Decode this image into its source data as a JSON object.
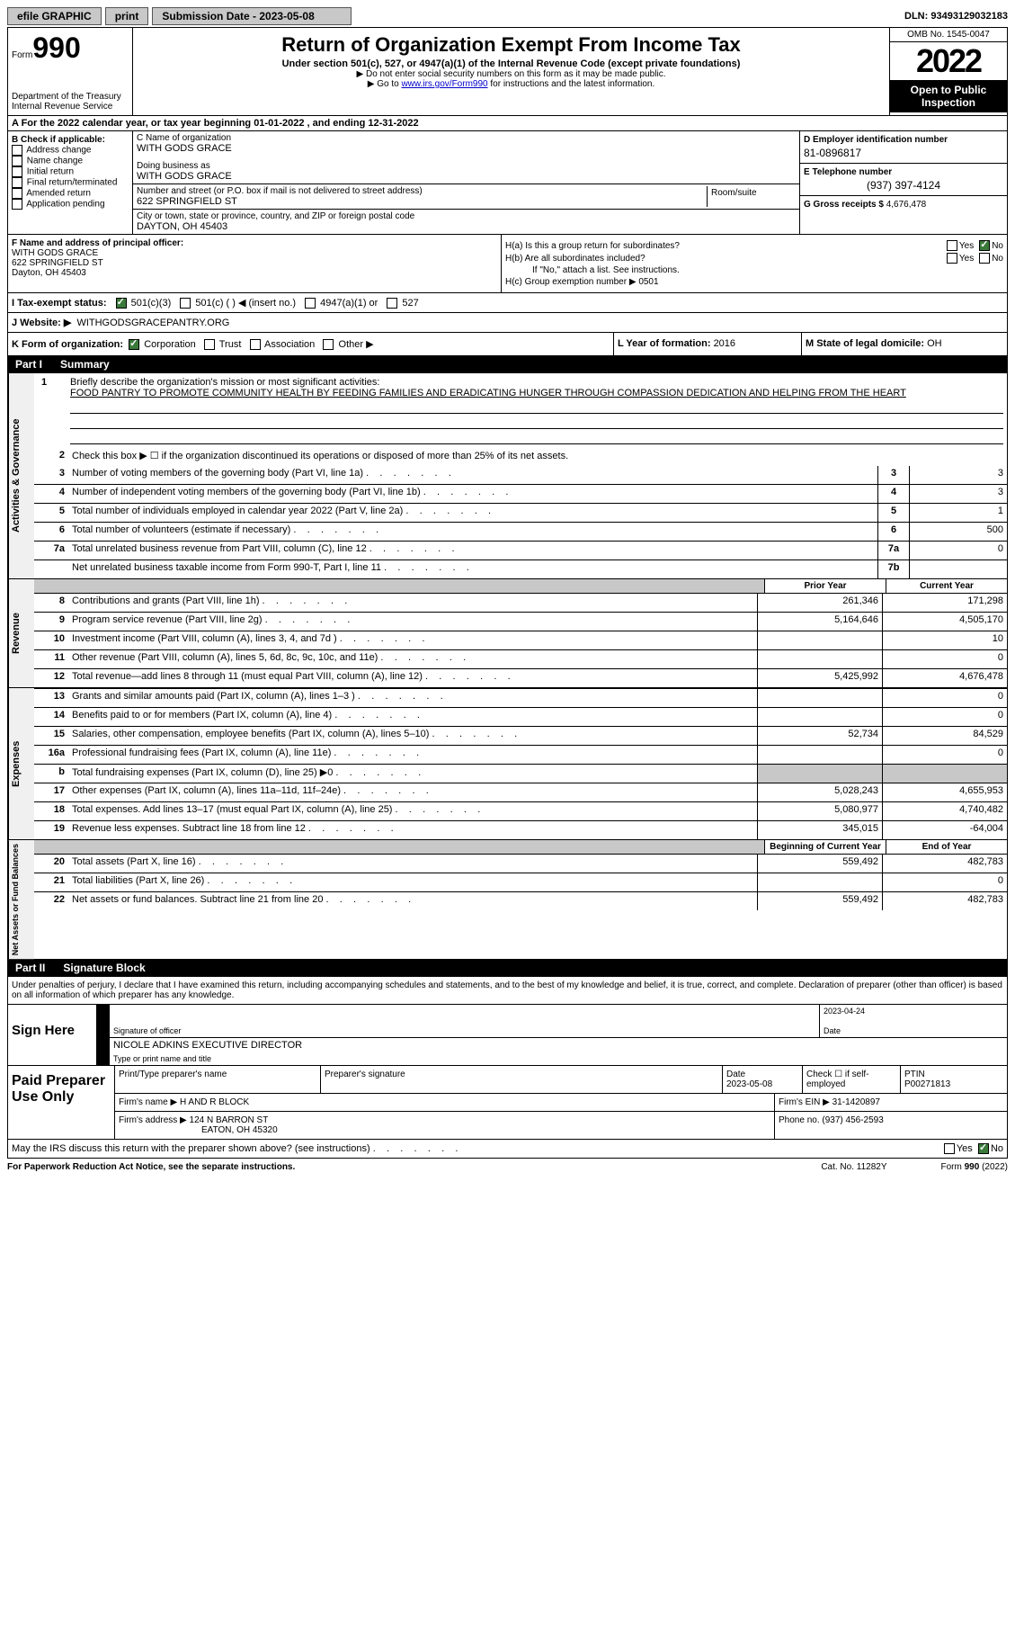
{
  "topbar": {
    "efile": "efile GRAPHIC",
    "print": "print",
    "sub_label": "Submission Date - 2023-05-08",
    "dln": "DLN: 93493129032183"
  },
  "header": {
    "form_word": "Form",
    "form_num": "990",
    "dept": "Department of the Treasury",
    "irs": "Internal Revenue Service",
    "title": "Return of Organization Exempt From Income Tax",
    "sub": "Under section 501(c), 527, or 4947(a)(1) of the Internal Revenue Code (except private foundations)",
    "note1": "▶ Do not enter social security numbers on this form as it may be made public.",
    "note2_pre": "▶ Go to ",
    "note2_link": "www.irs.gov/Form990",
    "note2_post": " for instructions and the latest information.",
    "omb": "OMB No. 1545-0047",
    "year": "2022",
    "open": "Open to Public Inspection"
  },
  "row_a": "A For the 2022 calendar year, or tax year beginning 01-01-2022    , and ending 12-31-2022",
  "box_b": {
    "label": "B Check if applicable:",
    "opts": [
      "Address change",
      "Name change",
      "Initial return",
      "Final return/terminated",
      "Amended return",
      "Application pending"
    ]
  },
  "box_c": {
    "name_label": "C Name of organization",
    "name": "WITH GODS GRACE",
    "dba_label": "Doing business as",
    "dba": "WITH GODS GRACE",
    "street_label": "Number and street (or P.O. box if mail is not delivered to street address)",
    "street": "622 SPRINGFIELD ST",
    "room_label": "Room/suite",
    "city_label": "City or town, state or province, country, and ZIP or foreign postal code",
    "city": "DAYTON, OH  45403"
  },
  "box_d": {
    "label": "D Employer identification number",
    "val": "81-0896817"
  },
  "box_e": {
    "label": "E Telephone number",
    "val": "(937) 397-4124"
  },
  "box_g": {
    "label": "G Gross receipts $ ",
    "val": "4,676,478"
  },
  "box_f": {
    "label": "F Name and address of principal officer:",
    "l1": "WITH GODS GRACE",
    "l2": "622 SPRINGFIELD ST",
    "l3": "Dayton, OH  45403"
  },
  "box_h": {
    "a": "H(a)  Is this a group return for subordinates?",
    "b": "H(b)  Are all subordinates included?",
    "b_note": "If \"No,\" attach a list. See instructions.",
    "c": "H(c)  Group exemption number ▶",
    "c_val": "0501",
    "yes": "Yes",
    "no": "No"
  },
  "row_i": {
    "label": "I  Tax-exempt status:",
    "o1": "501(c)(3)",
    "o2": "501(c) (   ) ◀ (insert no.)",
    "o3": "4947(a)(1) or",
    "o4": "527"
  },
  "row_j": {
    "label": "J  Website: ▶",
    "val": "WITHGODSGRACEPANTRY.ORG"
  },
  "row_k": {
    "label": "K Form of organization:",
    "o1": "Corporation",
    "o2": "Trust",
    "o3": "Association",
    "o4": "Other ▶"
  },
  "row_l": {
    "label": "L Year of formation: ",
    "val": "2016"
  },
  "row_m": {
    "label": "M State of legal domicile: ",
    "val": "OH"
  },
  "part1": {
    "label": "Part I",
    "title": "Summary"
  },
  "summary_sections": [
    {
      "vert": "Activities & Governance"
    },
    {
      "vert": "Revenue"
    },
    {
      "vert": "Expenses"
    },
    {
      "vert": "Net Assets or Fund Balances"
    }
  ],
  "line1": {
    "num": "1",
    "label": "Briefly describe the organization's mission or most significant activities:",
    "text": "FOOD PANTRY TO PROMOTE COMMUNITY HEALTH BY FEEDING FAMILIES AND ERADICATING HUNGER THROUGH COMPASSION DEDICATION AND HELPING FROM THE HEART"
  },
  "line2": {
    "num": "2",
    "text": "Check this box ▶ ☐  if the organization discontinued its operations or disposed of more than 25% of its net assets."
  },
  "gov_lines": [
    {
      "n": "3",
      "t": "Number of voting members of the governing body (Part VI, line 1a)",
      "b": "3",
      "v": "3"
    },
    {
      "n": "4",
      "t": "Number of independent voting members of the governing body (Part VI, line 1b)",
      "b": "4",
      "v": "3"
    },
    {
      "n": "5",
      "t": "Total number of individuals employed in calendar year 2022 (Part V, line 2a)",
      "b": "5",
      "v": "1"
    },
    {
      "n": "6",
      "t": "Total number of volunteers (estimate if necessary)",
      "b": "6",
      "v": "500"
    },
    {
      "n": "7a",
      "t": "Total unrelated business revenue from Part VIII, column (C), line 12",
      "b": "7a",
      "v": "0"
    },
    {
      "n": " ",
      "t": "Net unrelated business taxable income from Form 990-T, Part I, line 11",
      "b": "7b",
      "v": ""
    }
  ],
  "col_headers": {
    "prior": "Prior Year",
    "curr": "Current Year",
    "bgn": "Beginning of Current Year",
    "end": "End of Year"
  },
  "rev_lines": [
    {
      "n": "8",
      "t": "Contributions and grants (Part VIII, line 1h)",
      "p": "261,346",
      "c": "171,298"
    },
    {
      "n": "9",
      "t": "Program service revenue (Part VIII, line 2g)",
      "p": "5,164,646",
      "c": "4,505,170"
    },
    {
      "n": "10",
      "t": "Investment income (Part VIII, column (A), lines 3, 4, and 7d )",
      "p": "",
      "c": "10"
    },
    {
      "n": "11",
      "t": "Other revenue (Part VIII, column (A), lines 5, 6d, 8c, 9c, 10c, and 11e)",
      "p": "",
      "c": "0"
    },
    {
      "n": "12",
      "t": "Total revenue—add lines 8 through 11 (must equal Part VIII, column (A), line 12)",
      "p": "5,425,992",
      "c": "4,676,478"
    }
  ],
  "exp_lines": [
    {
      "n": "13",
      "t": "Grants and similar amounts paid (Part IX, column (A), lines 1–3 )",
      "p": "",
      "c": "0"
    },
    {
      "n": "14",
      "t": "Benefits paid to or for members (Part IX, column (A), line 4)",
      "p": "",
      "c": "0"
    },
    {
      "n": "15",
      "t": "Salaries, other compensation, employee benefits (Part IX, column (A), lines 5–10)",
      "p": "52,734",
      "c": "84,529"
    },
    {
      "n": "16a",
      "t": "Professional fundraising fees (Part IX, column (A), line 11e)",
      "p": "",
      "c": "0"
    },
    {
      "n": "b",
      "t": "Total fundraising expenses (Part IX, column (D), line 25) ▶0",
      "p": "SHADE",
      "c": "SHADE"
    },
    {
      "n": "17",
      "t": "Other expenses (Part IX, column (A), lines 11a–11d, 11f–24e)",
      "p": "5,028,243",
      "c": "4,655,953"
    },
    {
      "n": "18",
      "t": "Total expenses. Add lines 13–17 (must equal Part IX, column (A), line 25)",
      "p": "5,080,977",
      "c": "4,740,482"
    },
    {
      "n": "19",
      "t": "Revenue less expenses. Subtract line 18 from line 12",
      "p": "345,015",
      "c": "-64,004"
    }
  ],
  "net_lines": [
    {
      "n": "20",
      "t": "Total assets (Part X, line 16)",
      "p": "559,492",
      "c": "482,783"
    },
    {
      "n": "21",
      "t": "Total liabilities (Part X, line 26)",
      "p": "",
      "c": "0"
    },
    {
      "n": "22",
      "t": "Net assets or fund balances. Subtract line 21 from line 20",
      "p": "559,492",
      "c": "482,783"
    }
  ],
  "part2": {
    "label": "Part II",
    "title": "Signature Block"
  },
  "sig": {
    "decl": "Under penalties of perjury, I declare that I have examined this return, including accompanying schedules and statements, and to the best of my knowledge and belief, it is true, correct, and complete. Declaration of preparer (other than officer) is based on all information of which preparer has any knowledge.",
    "sign_here": "Sign Here",
    "sig_label": "Signature of officer",
    "date_val": "2023-04-24",
    "date_label": "Date",
    "name": "NICOLE ADKINS  EXECUTIVE DIRECTOR",
    "name_label": "Type or print name and title"
  },
  "prep": {
    "title": "Paid Preparer Use Only",
    "h1": "Print/Type preparer's name",
    "h2": "Preparer's signature",
    "h3": "Date",
    "h3v": "2023-05-08",
    "h4": "Check ☐ if self-employed",
    "h5": "PTIN",
    "h5v": "P00271813",
    "firm_label": "Firm's name    ▶",
    "firm": "H AND R BLOCK",
    "ein_label": "Firm's EIN ▶",
    "ein": "31-1420897",
    "addr_label": "Firm's address ▶",
    "addr1": "124 N BARRON ST",
    "addr2": "EATON, OH  45320",
    "phone_label": "Phone no.",
    "phone": "(937) 456-2593"
  },
  "discuss": {
    "q": "May the IRS discuss this return with the preparer shown above? (see instructions)",
    "yes": "Yes",
    "no": "No"
  },
  "footer": {
    "l": "For Paperwork Reduction Act Notice, see the separate instructions.",
    "c": "Cat. No. 11282Y",
    "r": "Form 990 (2022)"
  }
}
